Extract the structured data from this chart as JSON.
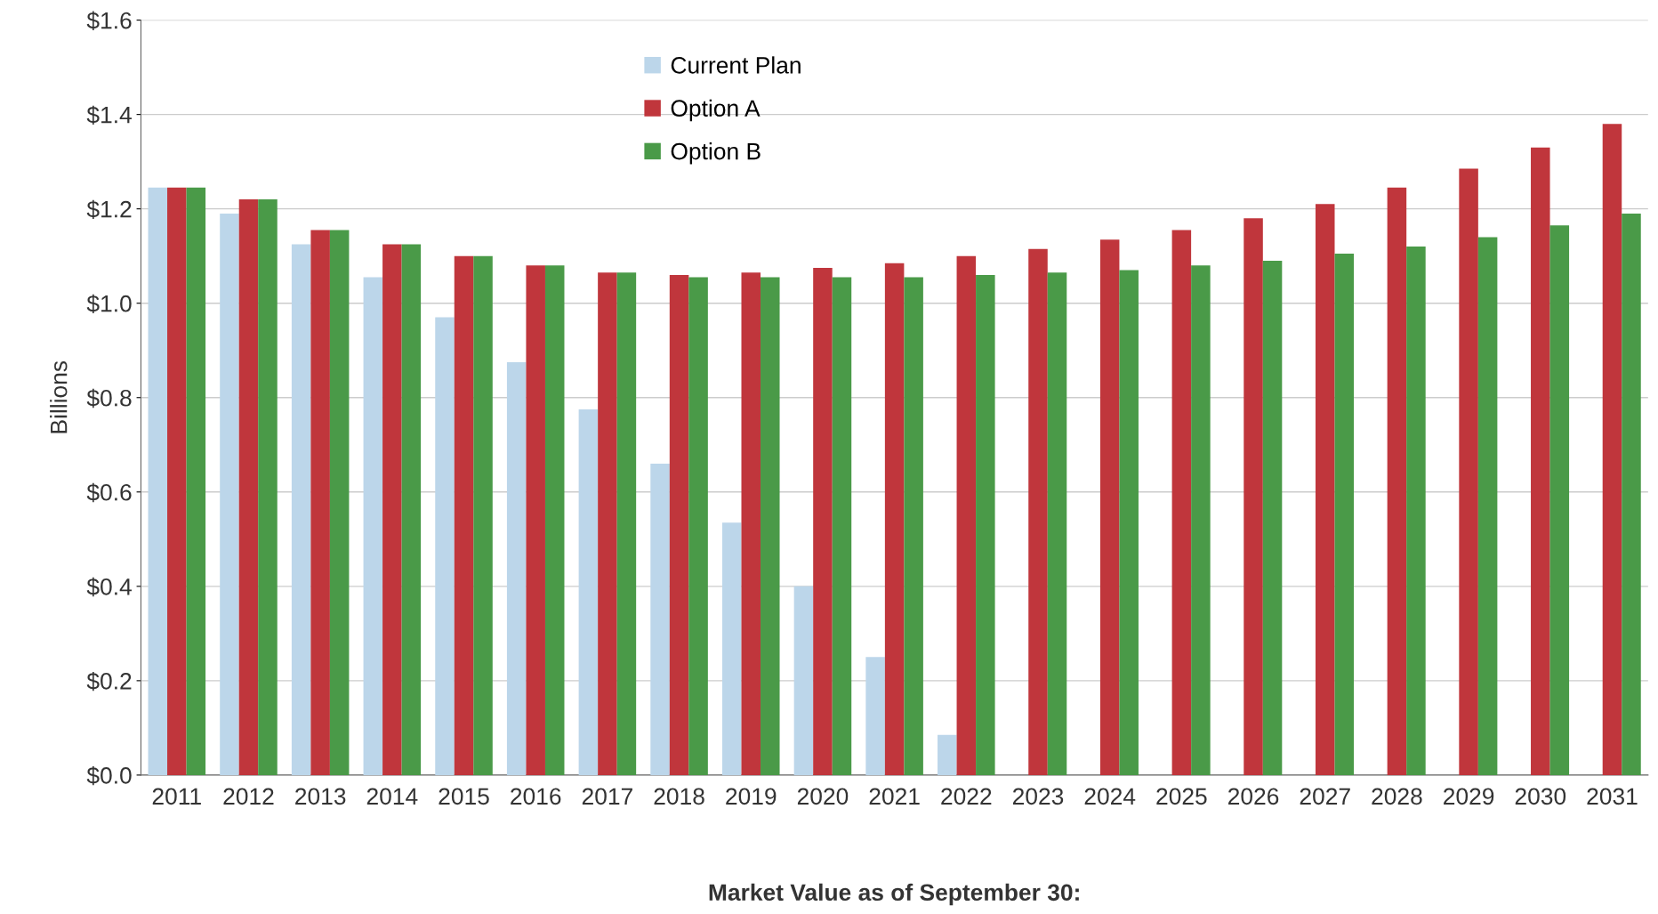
{
  "chart_data": {
    "type": "bar",
    "xlabel": "Market Value as of September 30:",
    "ylabel": "Billions",
    "categories": [
      "2011",
      "2012",
      "2013",
      "2014",
      "2015",
      "2016",
      "2017",
      "2018",
      "2019",
      "2020",
      "2021",
      "2022",
      "2023",
      "2024",
      "2025",
      "2026",
      "2027",
      "2028",
      "2029",
      "2030",
      "2031"
    ],
    "series": [
      {
        "name": "Current Plan",
        "color": "#bcd6ea",
        "values": [
          1.245,
          1.19,
          1.125,
          1.055,
          0.97,
          0.875,
          0.775,
          0.66,
          0.535,
          0.4,
          0.25,
          0.085,
          null,
          null,
          null,
          null,
          null,
          null,
          null,
          null,
          null
        ]
      },
      {
        "name": "Option A",
        "color": "#c0363c",
        "values": [
          1.245,
          1.22,
          1.155,
          1.125,
          1.1,
          1.08,
          1.065,
          1.06,
          1.065,
          1.075,
          1.085,
          1.1,
          1.115,
          1.135,
          1.155,
          1.18,
          1.21,
          1.245,
          1.285,
          1.33,
          1.38
        ]
      },
      {
        "name": "Option B",
        "color": "#4a9a48",
        "values": [
          1.245,
          1.22,
          1.155,
          1.125,
          1.1,
          1.08,
          1.065,
          1.055,
          1.055,
          1.055,
          1.055,
          1.06,
          1.065,
          1.07,
          1.08,
          1.09,
          1.105,
          1.12,
          1.14,
          1.165,
          1.19
        ]
      }
    ],
    "ylim": [
      0,
      1.6
    ],
    "yticks": [
      {
        "value": 0,
        "label": "$0.0"
      },
      {
        "value": 0.2,
        "label": "$0.2"
      },
      {
        "value": 0.4,
        "label": "$0.4"
      },
      {
        "value": 0.6,
        "label": "$0.6"
      },
      {
        "value": 0.8,
        "label": "$0.8"
      },
      {
        "value": 1.0,
        "label": "$1.0"
      },
      {
        "value": 1.2,
        "label": "$1.2"
      },
      {
        "value": 1.4,
        "label": "$1.4"
      },
      {
        "value": 1.6,
        "label": "$1.6"
      }
    ],
    "grid": "y",
    "legend": "top"
  }
}
